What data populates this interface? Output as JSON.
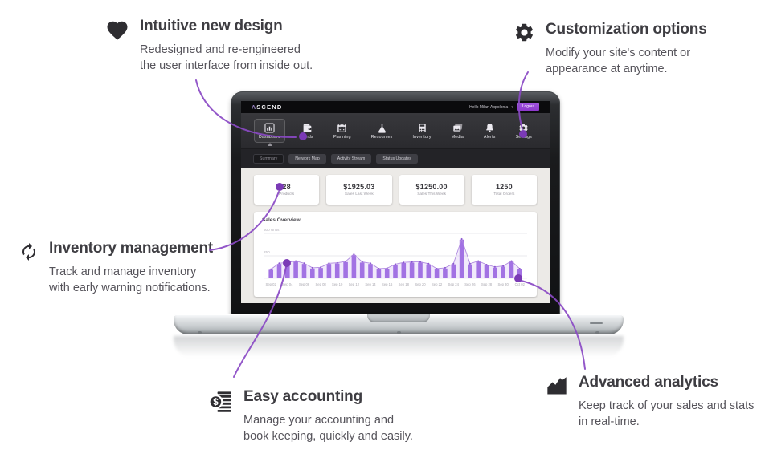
{
  "colors": {
    "accent_purple": "#8a49c4",
    "dot_purple": "#7b3ab6",
    "bar_purple": "#a372e3",
    "line_purple": "#b08ae0",
    "logout_purple": "#8c35c9",
    "heading_text": "#3e3d42",
    "body_text": "#56545b"
  },
  "callouts": [
    {
      "id": "intuitive-new-design",
      "icon": "heart-icon",
      "title": "Intuitive new design",
      "body": "Redesigned and re-engineered\nthe user interface from inside out."
    },
    {
      "id": "customization-options",
      "icon": "gear-icon",
      "title": "Customization options",
      "body": "Modify your site's content or\nappearance at anytime."
    },
    {
      "id": "inventory-management",
      "icon": "refresh-icon",
      "title": "Inventory management",
      "body": "Track and manage inventory\nwith early warning notifications."
    },
    {
      "id": "easy-accounting",
      "icon": "ledger-dollar-icon",
      "title": "Easy accounting",
      "body": "Manage your accounting and\nbook keeping, quickly and easily."
    },
    {
      "id": "advanced-analytics",
      "icon": "area-chart-icon",
      "title": "Advanced analytics",
      "body": "Keep track of your sales and stats\nin real-time."
    }
  ],
  "laptop": {
    "header": {
      "logo_mark": "Λ",
      "logo_text": "SCEND",
      "greeting": "Hello Milan Appolonia",
      "caret": "▾",
      "logout_label": "Logout"
    },
    "nav_items": [
      {
        "label": "Dashboard",
        "icon": "dashboard-icon",
        "active": true
      },
      {
        "label": "Funds",
        "icon": "funds-icon",
        "active": false
      },
      {
        "label": "Planning",
        "icon": "calendar-icon",
        "active": false
      },
      {
        "label": "Resources",
        "icon": "flask-icon",
        "active": false
      },
      {
        "label": "Inventory",
        "icon": "calculator-icon",
        "active": false
      },
      {
        "label": "Media",
        "icon": "media-icon",
        "active": false
      },
      {
        "label": "Alerts",
        "icon": "bell-icon",
        "active": false
      },
      {
        "label": "Settings",
        "icon": "settings-icon",
        "active": false
      }
    ],
    "subtabs": [
      {
        "label": "Summary",
        "active": true
      },
      {
        "label": "Network Map",
        "active": false
      },
      {
        "label": "Activity Stream",
        "active": false
      },
      {
        "label": "Status Updates",
        "active": false
      }
    ],
    "stats": [
      {
        "value": "28",
        "label": "Products"
      },
      {
        "value": "$1925.03",
        "label": "Sales Last Week"
      },
      {
        "value": "$1250.00",
        "label": "Sales This Week"
      },
      {
        "value": "1250",
        "label": "Total Orders"
      }
    ]
  },
  "chart_data": {
    "type": "bar",
    "title": "Sales Overview",
    "overlay": "line",
    "ylim": [
      0,
      500
    ],
    "grid_lines": [
      {
        "value": 500,
        "label": "500 Units"
      },
      {
        "value": 250,
        "label": "250"
      }
    ],
    "tick_every": 2,
    "x": [
      "Sep 02",
      "Sep 03",
      "Sep 04",
      "Sep 05",
      "Sep 06",
      "Sep 07",
      "Sep 08",
      "Sep 09",
      "Sep 10",
      "Sep 11",
      "Sep 12",
      "Sep 13",
      "Sep 14",
      "Sep 15",
      "Sep 16",
      "Sep 17",
      "Sep 18",
      "Sep 19",
      "Sep 20",
      "Sep 21",
      "Sep 22",
      "Sep 23",
      "Sep 24",
      "Sep 25",
      "Sep 26",
      "Sep 27",
      "Sep 28",
      "Sep 29",
      "Sep 30",
      "Oct 01",
      "Oct 02"
    ],
    "values": [
      95,
      160,
      170,
      185,
      160,
      110,
      115,
      160,
      165,
      180,
      260,
      175,
      160,
      100,
      105,
      150,
      170,
      175,
      175,
      155,
      100,
      110,
      155,
      430,
      155,
      185,
      145,
      120,
      130,
      185,
      100
    ]
  }
}
